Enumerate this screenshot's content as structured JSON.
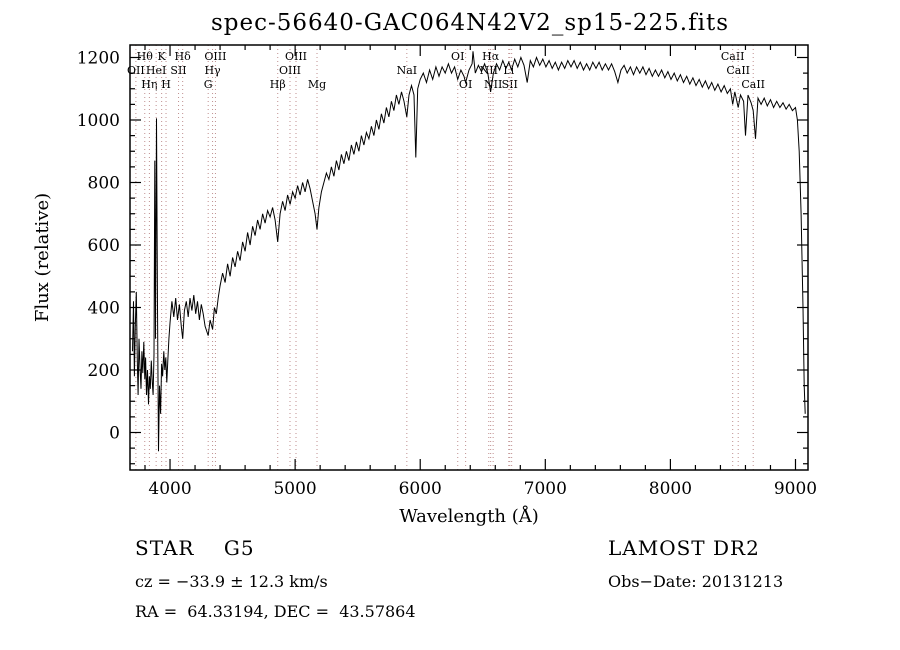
{
  "title": "spec-56640-GAC064N42V2_sp15-225.fits",
  "footer": {
    "class_label": "STAR    G5",
    "survey": "LAMOST DR2",
    "cz": "cz = −33.9 ± 12.3 km/s",
    "obs_date": "Obs−Date: 20131213",
    "radec": "RA =  64.33194, DEC =  43.57864"
  },
  "chart_data": {
    "type": "line",
    "title": "spec-56640-GAC064N42V2_sp15-225.fits",
    "xlabel": "Wavelength (Å)",
    "ylabel": "Flux (relative)",
    "xlim": [
      3680,
      9100
    ],
    "ylim": [
      -120,
      1240
    ],
    "x_ticks": [
      4000,
      5000,
      6000,
      7000,
      8000,
      9000
    ],
    "y_ticks": [
      0,
      200,
      400,
      600,
      800,
      1000,
      1200
    ],
    "x_minor_step": 200,
    "y_minor_step": 50,
    "grid": false,
    "legend": "none",
    "line_color": "#000000",
    "marker_color": "#bf8f8f",
    "spectral_lines": [
      {
        "wavelength": 3727,
        "label": "OII",
        "row": 2
      },
      {
        "wavelength": 3798,
        "label": "Hθ",
        "row": 1
      },
      {
        "wavelength": 3835,
        "label": "Hη",
        "row": 3
      },
      {
        "wavelength": 3889,
        "label": "HeI",
        "row": 2
      },
      {
        "wavelength": 3933,
        "label": "K",
        "row": 1
      },
      {
        "wavelength": 3968,
        "label": "H",
        "row": 3
      },
      {
        "wavelength": 4068,
        "label": "SII",
        "row": 2
      },
      {
        "wavelength": 4101,
        "label": "Hδ",
        "row": 1
      },
      {
        "wavelength": 4305,
        "label": "G",
        "row": 3
      },
      {
        "wavelength": 4340,
        "label": "Hγ",
        "row": 2
      },
      {
        "wavelength": 4363,
        "label": "OIII",
        "row": 1
      },
      {
        "wavelength": 4861,
        "label": "Hβ",
        "row": 3
      },
      {
        "wavelength": 4959,
        "label": "OIII",
        "row": 2
      },
      {
        "wavelength": 5007,
        "label": "OIII",
        "row": 1
      },
      {
        "wavelength": 5175,
        "label": "Mg",
        "row": 3
      },
      {
        "wavelength": 5893,
        "label": "NaI",
        "row": 2
      },
      {
        "wavelength": 6300,
        "label": "OI",
        "row": 1
      },
      {
        "wavelength": 6363,
        "label": "OI",
        "row": 3
      },
      {
        "wavelength": 6548,
        "label": "NII",
        "row": 2
      },
      {
        "wavelength": 6563,
        "label": "Hα",
        "row": 1
      },
      {
        "wavelength": 6583,
        "label": "NII",
        "row": 3
      },
      {
        "wavelength": 6708,
        "label": "Li",
        "row": 2
      },
      {
        "wavelength": 6716,
        "label": "SII",
        "row": 3
      },
      {
        "wavelength": 6731,
        "label": "",
        "row": 3
      },
      {
        "wavelength": 8498,
        "label": "CaII",
        "row": 1
      },
      {
        "wavelength": 8542,
        "label": "CaII",
        "row": 2
      },
      {
        "wavelength": 8662,
        "label": "CaII",
        "row": 3
      }
    ],
    "series": [
      {
        "name": "flux",
        "points": [
          [
            3700,
            260
          ],
          [
            3708,
            420
          ],
          [
            3715,
            180
          ],
          [
            3722,
            340
          ],
          [
            3730,
            450
          ],
          [
            3738,
            230
          ],
          [
            3745,
            120
          ],
          [
            3752,
            300
          ],
          [
            3760,
            210
          ],
          [
            3768,
            140
          ],
          [
            3775,
            260
          ],
          [
            3782,
            190
          ],
          [
            3790,
            290
          ],
          [
            3798,
            170
          ],
          [
            3805,
            240
          ],
          [
            3812,
            120
          ],
          [
            3820,
            200
          ],
          [
            3828,
            90
          ],
          [
            3835,
            180
          ],
          [
            3842,
            140
          ],
          [
            3850,
            230
          ],
          [
            3858,
            160
          ],
          [
            3865,
            120
          ],
          [
            3872,
            250
          ],
          [
            3878,
            870
          ],
          [
            3884,
            300
          ],
          [
            3892,
            1005
          ],
          [
            3900,
            400
          ],
          [
            3908,
            -60
          ],
          [
            3916,
            150
          ],
          [
            3925,
            60
          ],
          [
            3933,
            220
          ],
          [
            3941,
            180
          ],
          [
            3950,
            260
          ],
          [
            3958,
            200
          ],
          [
            3966,
            240
          ],
          [
            3974,
            160
          ],
          [
            3982,
            230
          ],
          [
            3991,
            300
          ],
          [
            4000,
            350
          ],
          [
            4015,
            420
          ],
          [
            4030,
            370
          ],
          [
            4045,
            430
          ],
          [
            4060,
            360
          ],
          [
            4075,
            410
          ],
          [
            4090,
            340
          ],
          [
            4101,
            300
          ],
          [
            4115,
            390
          ],
          [
            4130,
            420
          ],
          [
            4145,
            370
          ],
          [
            4160,
            430
          ],
          [
            4175,
            390
          ],
          [
            4190,
            440
          ],
          [
            4205,
            380
          ],
          [
            4220,
            420
          ],
          [
            4235,
            360
          ],
          [
            4250,
            410
          ],
          [
            4265,
            380
          ],
          [
            4280,
            340
          ],
          [
            4305,
            310
          ],
          [
            4320,
            360
          ],
          [
            4340,
            330
          ],
          [
            4355,
            400
          ],
          [
            4370,
            380
          ],
          [
            4385,
            430
          ],
          [
            4400,
            470
          ],
          [
            4420,
            510
          ],
          [
            4440,
            480
          ],
          [
            4460,
            540
          ],
          [
            4480,
            500
          ],
          [
            4500,
            560
          ],
          [
            4520,
            530
          ],
          [
            4540,
            580
          ],
          [
            4560,
            550
          ],
          [
            4580,
            610
          ],
          [
            4600,
            580
          ],
          [
            4620,
            640
          ],
          [
            4640,
            600
          ],
          [
            4660,
            660
          ],
          [
            4680,
            630
          ],
          [
            4700,
            680
          ],
          [
            4720,
            650
          ],
          [
            4740,
            700
          ],
          [
            4760,
            670
          ],
          [
            4780,
            710
          ],
          [
            4800,
            690
          ],
          [
            4820,
            720
          ],
          [
            4840,
            680
          ],
          [
            4861,
            610
          ],
          [
            4880,
            700
          ],
          [
            4900,
            740
          ],
          [
            4920,
            710
          ],
          [
            4940,
            760
          ],
          [
            4960,
            730
          ],
          [
            4980,
            770
          ],
          [
            5000,
            750
          ],
          [
            5020,
            790
          ],
          [
            5040,
            760
          ],
          [
            5060,
            800
          ],
          [
            5080,
            770
          ],
          [
            5100,
            810
          ],
          [
            5120,
            780
          ],
          [
            5140,
            740
          ],
          [
            5160,
            700
          ],
          [
            5175,
            650
          ],
          [
            5190,
            720
          ],
          [
            5210,
            770
          ],
          [
            5230,
            800
          ],
          [
            5250,
            830
          ],
          [
            5270,
            810
          ],
          [
            5290,
            850
          ],
          [
            5310,
            820
          ],
          [
            5330,
            870
          ],
          [
            5350,
            840
          ],
          [
            5370,
            890
          ],
          [
            5390,
            860
          ],
          [
            5410,
            900
          ],
          [
            5430,
            870
          ],
          [
            5450,
            920
          ],
          [
            5470,
            890
          ],
          [
            5490,
            930
          ],
          [
            5510,
            900
          ],
          [
            5530,
            950
          ],
          [
            5550,
            920
          ],
          [
            5570,
            960
          ],
          [
            5590,
            940
          ],
          [
            5610,
            980
          ],
          [
            5630,
            950
          ],
          [
            5650,
            1000
          ],
          [
            5670,
            970
          ],
          [
            5690,
            1020
          ],
          [
            5710,
            990
          ],
          [
            5730,
            1040
          ],
          [
            5750,
            1010
          ],
          [
            5770,
            1060
          ],
          [
            5790,
            1030
          ],
          [
            5810,
            1080
          ],
          [
            5830,
            1050
          ],
          [
            5850,
            1090
          ],
          [
            5870,
            1060
          ],
          [
            5893,
            1010
          ],
          [
            5910,
            1080
          ],
          [
            5930,
            1110
          ],
          [
            5950,
            1080
          ],
          [
            5965,
            880
          ],
          [
            5980,
            1100
          ],
          [
            6000,
            1130
          ],
          [
            6025,
            1150
          ],
          [
            6050,
            1120
          ],
          [
            6075,
            1160
          ],
          [
            6100,
            1130
          ],
          [
            6125,
            1170
          ],
          [
            6150,
            1140
          ],
          [
            6175,
            1170
          ],
          [
            6200,
            1150
          ],
          [
            6225,
            1180
          ],
          [
            6250,
            1150
          ],
          [
            6275,
            1170
          ],
          [
            6300,
            1130
          ],
          [
            6325,
            1160
          ],
          [
            6350,
            1140
          ],
          [
            6363,
            1120
          ],
          [
            6390,
            1160
          ],
          [
            6415,
            1180
          ],
          [
            6422,
            1220
          ],
          [
            6440,
            1150
          ],
          [
            6465,
            1175
          ],
          [
            6490,
            1155
          ],
          [
            6515,
            1180
          ],
          [
            6540,
            1150
          ],
          [
            6563,
            1090
          ],
          [
            6585,
            1150
          ],
          [
            6610,
            1180
          ],
          [
            6635,
            1160
          ],
          [
            6660,
            1190
          ],
          [
            6685,
            1165
          ],
          [
            6708,
            1185
          ],
          [
            6730,
            1160
          ],
          [
            6755,
            1195
          ],
          [
            6780,
            1170
          ],
          [
            6805,
            1200
          ],
          [
            6830,
            1175
          ],
          [
            6855,
            1120
          ],
          [
            6880,
            1190
          ],
          [
            6905,
            1170
          ],
          [
            6930,
            1200
          ],
          [
            6955,
            1175
          ],
          [
            6980,
            1195
          ],
          [
            7005,
            1170
          ],
          [
            7030,
            1190
          ],
          [
            7055,
            1165
          ],
          [
            7080,
            1185
          ],
          [
            7105,
            1160
          ],
          [
            7130,
            1185
          ],
          [
            7155,
            1165
          ],
          [
            7180,
            1190
          ],
          [
            7205,
            1170
          ],
          [
            7230,
            1190
          ],
          [
            7255,
            1165
          ],
          [
            7280,
            1185
          ],
          [
            7305,
            1160
          ],
          [
            7330,
            1180
          ],
          [
            7355,
            1160
          ],
          [
            7380,
            1185
          ],
          [
            7405,
            1165
          ],
          [
            7430,
            1185
          ],
          [
            7455,
            1160
          ],
          [
            7480,
            1180
          ],
          [
            7505,
            1160
          ],
          [
            7530,
            1180
          ],
          [
            7555,
            1155
          ],
          [
            7580,
            1120
          ],
          [
            7605,
            1160
          ],
          [
            7630,
            1175
          ],
          [
            7655,
            1150
          ],
          [
            7680,
            1170
          ],
          [
            7705,
            1145
          ],
          [
            7730,
            1170
          ],
          [
            7755,
            1150
          ],
          [
            7780,
            1170
          ],
          [
            7805,
            1145
          ],
          [
            7830,
            1165
          ],
          [
            7855,
            1140
          ],
          [
            7880,
            1160
          ],
          [
            7905,
            1140
          ],
          [
            7930,
            1160
          ],
          [
            7955,
            1135
          ],
          [
            7980,
            1155
          ],
          [
            8005,
            1130
          ],
          [
            8030,
            1150
          ],
          [
            8055,
            1125
          ],
          [
            8080,
            1145
          ],
          [
            8105,
            1120
          ],
          [
            8130,
            1140
          ],
          [
            8155,
            1115
          ],
          [
            8180,
            1135
          ],
          [
            8205,
            1110
          ],
          [
            8230,
            1130
          ],
          [
            8255,
            1105
          ],
          [
            8280,
            1125
          ],
          [
            8305,
            1100
          ],
          [
            8330,
            1120
          ],
          [
            8355,
            1095
          ],
          [
            8380,
            1115
          ],
          [
            8405,
            1090
          ],
          [
            8430,
            1110
          ],
          [
            8455,
            1085
          ],
          [
            8480,
            1100
          ],
          [
            8498,
            1050
          ],
          [
            8515,
            1090
          ],
          [
            8542,
            1040
          ],
          [
            8560,
            1080
          ],
          [
            8585,
            1060
          ],
          [
            8600,
            950
          ],
          [
            8620,
            1080
          ],
          [
            8645,
            1055
          ],
          [
            8662,
            1030
          ],
          [
            8680,
            940
          ],
          [
            8700,
            1070
          ],
          [
            8725,
            1050
          ],
          [
            8750,
            1070
          ],
          [
            8775,
            1045
          ],
          [
            8800,
            1065
          ],
          [
            8825,
            1040
          ],
          [
            8850,
            1060
          ],
          [
            8875,
            1040
          ],
          [
            8900,
            1055
          ],
          [
            8925,
            1035
          ],
          [
            8950,
            1050
          ],
          [
            8975,
            1030
          ],
          [
            9000,
            1040
          ],
          [
            9015,
            1000
          ],
          [
            9030,
            900
          ],
          [
            9045,
            700
          ],
          [
            9060,
            400
          ],
          [
            9070,
            150
          ],
          [
            9078,
            60
          ]
        ]
      }
    ]
  }
}
